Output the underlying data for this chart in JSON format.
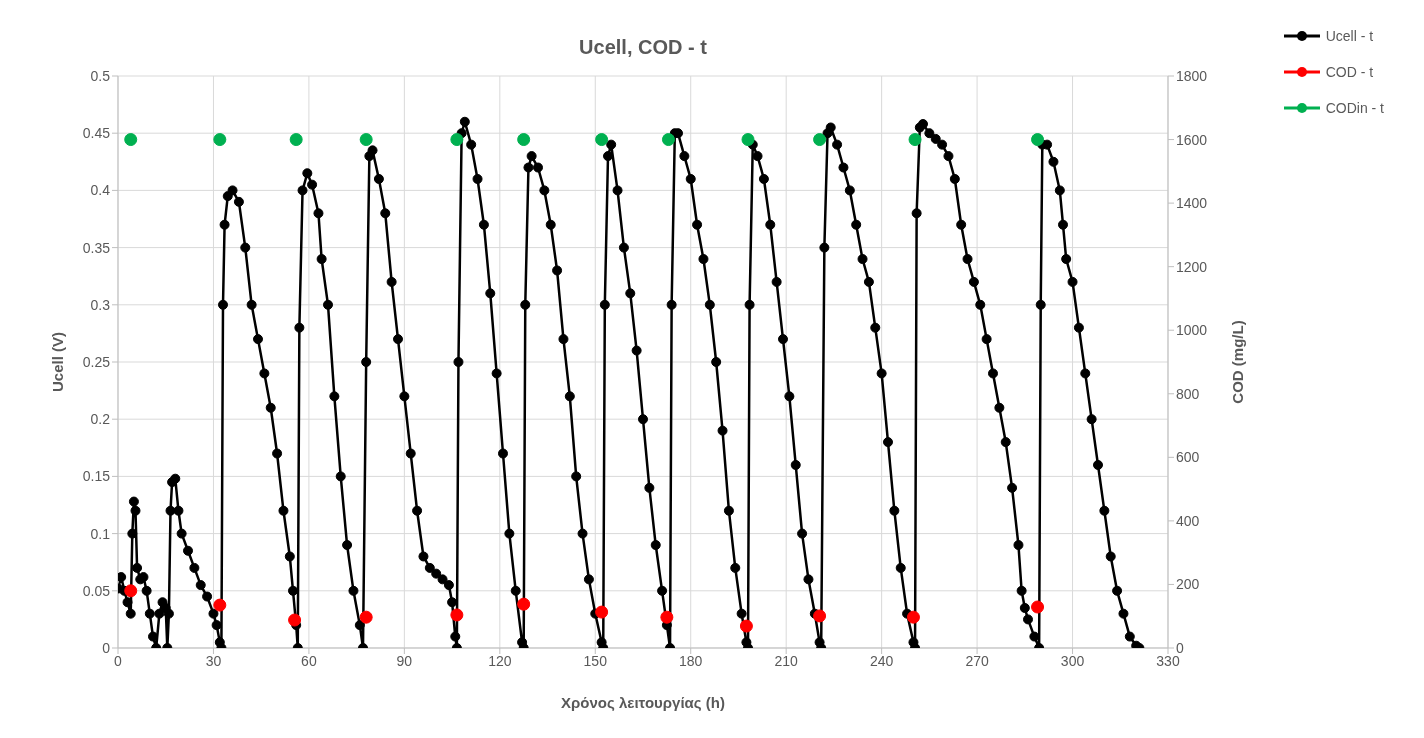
{
  "chart_data": {
    "type": "line",
    "title": "Ucell, COD - t",
    "xlabel": "Χρόνος λειτουργίας (h)",
    "ylabel": "Ucell (V)",
    "y2label": "COD (mg/L)",
    "xlim": [
      0,
      330
    ],
    "xticks": [
      0,
      30,
      60,
      90,
      120,
      150,
      180,
      210,
      240,
      270,
      300,
      330
    ],
    "ylim": [
      0,
      0.5
    ],
    "yticks": [
      0,
      0.05,
      0.1,
      0.15,
      0.2,
      0.25,
      0.3,
      0.35,
      0.4,
      0.45,
      0.5
    ],
    "y2lim": [
      0,
      1800
    ],
    "y2ticks": [
      0,
      200,
      400,
      600,
      800,
      1000,
      1200,
      1400,
      1600,
      1800
    ],
    "grid": true,
    "legend": "top right",
    "marker": "circle",
    "series": [
      {
        "name": "Ucell - t",
        "color": "#000000",
        "x": [
          0,
          1,
          2,
          3,
          4,
          4.5,
          5,
          5.5,
          6,
          7,
          8,
          9,
          10,
          11,
          12,
          13,
          14,
          15,
          15.5,
          16,
          16.5,
          17,
          18,
          19,
          20,
          22,
          24,
          26,
          28,
          30,
          31,
          32,
          32.5,
          33,
          33.5,
          34.5,
          36,
          38,
          40,
          42,
          44,
          46,
          48,
          50,
          52,
          54,
          55,
          56,
          56.5,
          57,
          58,
          59.5,
          61,
          63,
          64,
          66,
          68,
          70,
          72,
          74,
          76,
          77,
          78,
          79,
          80,
          82,
          84,
          86,
          88,
          90,
          92,
          94,
          96,
          98,
          100,
          102,
          104,
          105,
          106,
          106.5,
          107,
          108,
          109,
          111,
          113,
          115,
          117,
          119,
          121,
          123,
          125,
          127,
          127.5,
          128,
          129,
          130,
          132,
          134,
          136,
          138,
          140,
          142,
          144,
          146,
          148,
          150,
          152,
          152.5,
          153,
          154,
          155,
          157,
          159,
          161,
          163,
          165,
          167,
          169,
          171,
          172.5,
          173.5,
          174,
          175,
          176,
          178,
          180,
          182,
          184,
          186,
          188,
          190,
          192,
          194,
          196,
          197.5,
          198,
          198.5,
          199.5,
          201,
          203,
          205,
          207,
          209,
          211,
          213,
          215,
          217,
          219,
          220.5,
          221,
          222,
          223,
          224,
          226,
          228,
          230,
          232,
          234,
          236,
          238,
          240,
          242,
          244,
          246,
          248,
          250,
          250.5,
          251,
          252,
          253,
          255,
          257,
          259,
          261,
          263,
          265,
          267,
          269,
          271,
          273,
          275,
          277,
          279,
          281,
          283,
          284,
          285,
          286,
          288,
          289.5,
          290,
          290.5,
          292,
          294,
          296,
          297,
          298,
          300,
          302,
          304,
          306,
          308,
          310,
          312,
          314,
          316,
          318,
          320,
          321
        ],
        "values": [
          0.052,
          0.062,
          0.05,
          0.04,
          0.03,
          0.1,
          0.128,
          0.12,
          0.07,
          0.06,
          0.062,
          0.05,
          0.03,
          0.01,
          0,
          0.03,
          0.04,
          0.035,
          0,
          0.03,
          0.12,
          0.145,
          0.148,
          0.12,
          0.1,
          0.085,
          0.07,
          0.055,
          0.045,
          0.03,
          0.02,
          0.005,
          0,
          0.3,
          0.37,
          0.395,
          0.4,
          0.39,
          0.35,
          0.3,
          0.27,
          0.24,
          0.21,
          0.17,
          0.12,
          0.08,
          0.05,
          0.02,
          0,
          0.28,
          0.4,
          0.415,
          0.405,
          0.38,
          0.34,
          0.3,
          0.22,
          0.15,
          0.09,
          0.05,
          0.02,
          0,
          0.25,
          0.43,
          0.435,
          0.41,
          0.38,
          0.32,
          0.27,
          0.22,
          0.17,
          0.12,
          0.08,
          0.07,
          0.065,
          0.06,
          0.055,
          0.04,
          0.01,
          0,
          0.25,
          0.45,
          0.46,
          0.44,
          0.41,
          0.37,
          0.31,
          0.24,
          0.17,
          0.1,
          0.05,
          0.005,
          0,
          0.3,
          0.42,
          0.43,
          0.42,
          0.4,
          0.37,
          0.33,
          0.27,
          0.22,
          0.15,
          0.1,
          0.06,
          0.03,
          0.005,
          0,
          0.3,
          0.43,
          0.44,
          0.4,
          0.35,
          0.31,
          0.26,
          0.2,
          0.14,
          0.09,
          0.05,
          0.02,
          0,
          0.3,
          0.45,
          0.45,
          0.43,
          0.41,
          0.37,
          0.34,
          0.3,
          0.25,
          0.19,
          0.12,
          0.07,
          0.03,
          0.005,
          0,
          0.3,
          0.44,
          0.43,
          0.41,
          0.37,
          0.32,
          0.27,
          0.22,
          0.16,
          0.1,
          0.06,
          0.03,
          0.005,
          0,
          0.35,
          0.45,
          0.455,
          0.44,
          0.42,
          0.4,
          0.37,
          0.34,
          0.32,
          0.28,
          0.24,
          0.18,
          0.12,
          0.07,
          0.03,
          0.005,
          0,
          0.38,
          0.455,
          0.458,
          0.45,
          0.445,
          0.44,
          0.43,
          0.41,
          0.37,
          0.34,
          0.32,
          0.3,
          0.27,
          0.24,
          0.21,
          0.18,
          0.14,
          0.09,
          0.05,
          0.035,
          0.025,
          0.01,
          0,
          0.3,
          0.44,
          0.44,
          0.425,
          0.4,
          0.37,
          0.34,
          0.32,
          0.28,
          0.24,
          0.2,
          0.16,
          0.12,
          0.08,
          0.05,
          0.03,
          0.01,
          0.002,
          0
        ]
      },
      {
        "name": "COD - t",
        "type": "scatter",
        "axis": "y2",
        "color": "#ff0000",
        "x": [
          4,
          32,
          55.5,
          78,
          106.5,
          127.5,
          152,
          172.5,
          197.5,
          220.5,
          250,
          289
        ],
        "values": [
          180,
          135,
          88,
          97,
          104,
          138,
          113,
          97,
          69,
          101,
          97,
          129
        ]
      },
      {
        "name": "CODin - t",
        "type": "scatter",
        "axis": "y2",
        "color": "#00b050",
        "x": [
          4,
          32,
          56,
          78,
          106.5,
          127.5,
          152,
          173,
          198,
          220.5,
          250.5,
          289
        ],
        "values": [
          1600,
          1600,
          1600,
          1600,
          1600,
          1600,
          1600,
          1600,
          1600,
          1600,
          1600,
          1600
        ]
      }
    ]
  }
}
